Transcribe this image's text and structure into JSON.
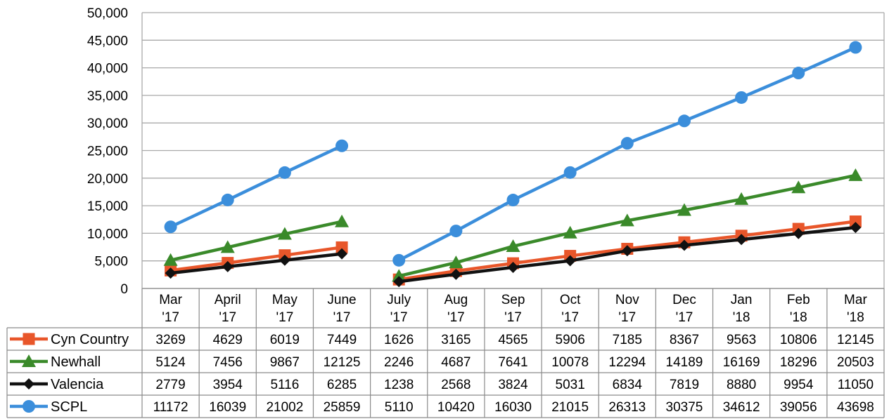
{
  "chart_data": {
    "type": "line",
    "title": "",
    "xlabel": "",
    "ylabel": "",
    "ylim": [
      0,
      50000
    ],
    "yticks": [
      "0",
      "5,000",
      "10,000",
      "15,000",
      "20,000",
      "25,000",
      "30,000",
      "35,000",
      "40,000",
      "45,000",
      "50,000"
    ],
    "grid": true,
    "legend": "data-table-left",
    "categories": [
      [
        "Mar",
        "'17"
      ],
      [
        "April",
        "'17"
      ],
      [
        "May",
        "'17"
      ],
      [
        "June",
        "'17"
      ],
      [
        "July",
        "'17"
      ],
      [
        "Aug",
        "'17"
      ],
      [
        "Sep",
        "'17"
      ],
      [
        "Oct",
        "'17"
      ],
      [
        "Nov",
        "'17"
      ],
      [
        "Dec",
        "'17"
      ],
      [
        "Jan",
        "'18"
      ],
      [
        "Feb",
        "'18"
      ],
      [
        "Mar",
        "'18"
      ]
    ],
    "segments": [
      [
        0,
        3
      ],
      [
        4,
        12
      ]
    ],
    "series": [
      {
        "name": "Cyn Country",
        "color": "#E8562A",
        "marker": "square",
        "values": [
          3269,
          4629,
          6019,
          7449,
          1626,
          3165,
          4565,
          5906,
          7185,
          8367,
          9563,
          10806,
          12145
        ]
      },
      {
        "name": "Newhall",
        "color": "#3A8A2A",
        "marker": "triangle",
        "values": [
          5124,
          7456,
          9867,
          12125,
          2246,
          4687,
          7641,
          10078,
          12294,
          14189,
          16169,
          18296,
          20503
        ]
      },
      {
        "name": "Valencia",
        "color": "#111111",
        "marker": "diamond",
        "values": [
          2779,
          3954,
          5116,
          6285,
          1238,
          2568,
          3824,
          5031,
          6834,
          7819,
          8880,
          9954,
          11050
        ]
      },
      {
        "name": "SCPL",
        "color": "#3B8EDB",
        "marker": "circle",
        "values": [
          11172,
          16039,
          21002,
          25859,
          5110,
          10420,
          16030,
          21015,
          26313,
          30375,
          34612,
          39056,
          43698
        ]
      }
    ]
  }
}
